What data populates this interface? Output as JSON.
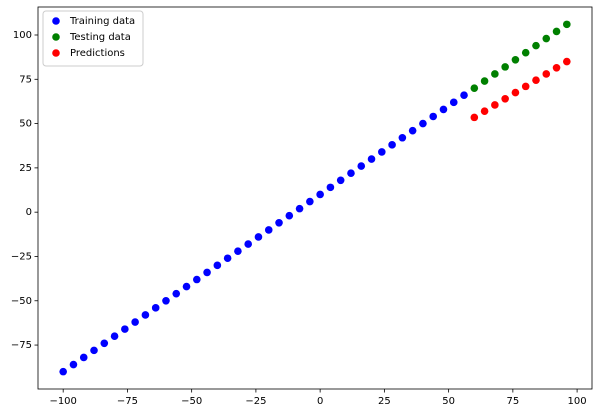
{
  "chart_data": {
    "type": "scatter",
    "series": [
      {
        "name": "Training data",
        "color": "#0000ff",
        "x": [
          -100,
          -96,
          -92,
          -88,
          -84,
          -80,
          -76,
          -72,
          -68,
          -64,
          -60,
          -56,
          -52,
          -48,
          -44,
          -40,
          -36,
          -32,
          -28,
          -24,
          -20,
          -16,
          -12,
          -8,
          -4,
          0,
          4,
          8,
          12,
          16,
          20,
          24,
          28,
          32,
          36,
          40,
          44,
          48,
          52,
          56
        ],
        "values": [
          -90,
          -86,
          -82,
          -78,
          -74,
          -70,
          -66,
          -62,
          -58,
          -54,
          -50,
          -46,
          -42,
          -38,
          -34,
          -30,
          -26,
          -22,
          -18,
          -14,
          -10,
          -6,
          -2,
          2,
          6,
          10,
          14,
          18,
          22,
          26,
          30,
          34,
          38,
          42,
          46,
          50,
          54,
          58,
          62,
          66
        ]
      },
      {
        "name": "Testing data",
        "color": "#008000",
        "x": [
          60,
          64,
          68,
          72,
          76,
          80,
          84,
          88,
          92,
          96
        ],
        "values": [
          70,
          74,
          78,
          82,
          86,
          90,
          94,
          98,
          102,
          106
        ]
      },
      {
        "name": "Predictions",
        "color": "#ff0000",
        "x": [
          60,
          64,
          68,
          72,
          76,
          80,
          84,
          88,
          92,
          96
        ],
        "values": [
          53.5,
          57,
          60.5,
          64,
          67.5,
          71,
          74.5,
          78,
          81.5,
          85
        ]
      }
    ],
    "xlim": [
      -109.8,
      105.8
    ],
    "ylim": [
      -99.8,
      115.8
    ],
    "xticks": [
      {
        "value": -100,
        "label": "−100"
      },
      {
        "value": -75,
        "label": "−75"
      },
      {
        "value": -50,
        "label": "−50"
      },
      {
        "value": -25,
        "label": "−25"
      },
      0,
      25,
      50,
      75,
      100
    ],
    "yticks": [
      {
        "value": -75,
        "label": "−75"
      },
      {
        "value": -50,
        "label": "−50"
      },
      {
        "value": -25,
        "label": "−25"
      },
      0,
      25,
      50,
      75,
      100
    ],
    "legend": "upper left"
  }
}
